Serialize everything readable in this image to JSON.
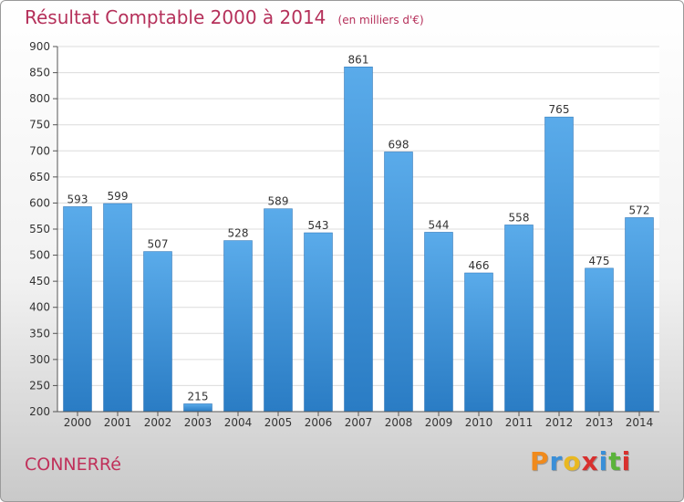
{
  "title": "Résultat Comptable 2000 à 2014",
  "subtitle": "(en milliers d'€)",
  "town": "CONNERRé",
  "logo": {
    "text": "Proxiti",
    "colors": [
      "#f08a1c",
      "#3a8fd8",
      "#e9b820",
      "#d8302e",
      "#3a8fd8",
      "#5bb33a",
      "#d8302e"
    ]
  },
  "colors": {
    "bar_top": "#5aabea",
    "bar_bottom": "#2a7cc4",
    "label": "#333333"
  },
  "chart_data": {
    "type": "bar",
    "categories": [
      "2000",
      "2001",
      "2002",
      "2003",
      "2004",
      "2005",
      "2006",
      "2007",
      "2008",
      "2009",
      "2010",
      "2011",
      "2012",
      "2013",
      "2014"
    ],
    "values": [
      593,
      599,
      507,
      215,
      528,
      589,
      543,
      861,
      698,
      544,
      466,
      558,
      765,
      475,
      572
    ],
    "ylim": [
      200,
      900
    ],
    "yticks": [
      200,
      250,
      300,
      350,
      400,
      450,
      500,
      550,
      600,
      650,
      700,
      750,
      800,
      850,
      900
    ],
    "grid": true
  }
}
